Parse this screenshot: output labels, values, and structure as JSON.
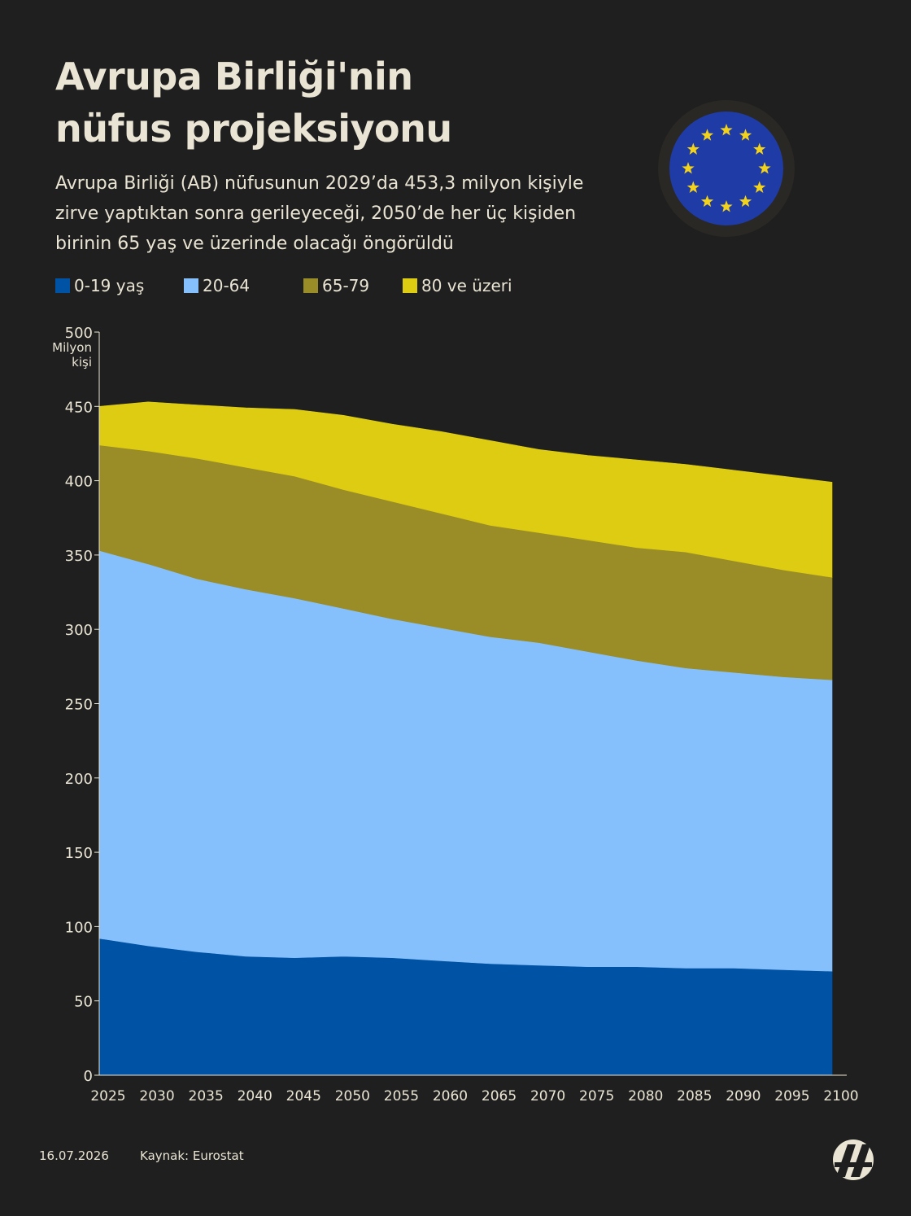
{
  "title_lines": [
    "Avrupa Birliği'nin",
    "nüfus projeksiyonu"
  ],
  "subtitle_lines": [
    "Avrupa Birliği (AB) nüfusunun 2029’da 453,3 milyon kişiyle",
    "zirve yaptıktan sonra gerileyeceği, 2050’de her üç kişiden",
    "birinin 65 yaş ve üzerinde olacağı öngörüldü"
  ],
  "footer": {
    "date": "16.07.2026",
    "source": "Kaynak: Eurostat"
  },
  "icons": {
    "flag": "eu-flag-icon",
    "logo": "aa-logo-icon"
  },
  "colors": {
    "background": "#1f1f1f",
    "text": "#e9e4d3",
    "flag_blue": "#1f3ba6",
    "flag_star": "#f2d21a"
  },
  "chart_data": {
    "type": "area",
    "stacked": true,
    "ylabel": "Milyon kişi",
    "ylabel_lines": [
      "Milyon",
      "kişi"
    ],
    "ylim": [
      0,
      500
    ],
    "yticks": [
      0,
      50,
      100,
      150,
      200,
      250,
      300,
      350,
      400,
      450,
      500
    ],
    "xlim": [
      2025,
      2100
    ],
    "xticks": [
      2025,
      2030,
      2035,
      2040,
      2045,
      2050,
      2055,
      2060,
      2065,
      2070,
      2075,
      2080,
      2085,
      2090,
      2095,
      2100
    ],
    "legend_position": "top-left",
    "x": [
      2025,
      2030,
      2035,
      2040,
      2045,
      2050,
      2055,
      2060,
      2065,
      2070,
      2075,
      2080,
      2085,
      2090,
      2095,
      2100
    ],
    "series": [
      {
        "name": "0-19 yaş",
        "color": "#0052a5",
        "values": [
          92,
          87,
          83,
          80,
          79,
          80,
          79,
          77,
          75,
          74,
          73,
          73,
          72,
          72,
          71,
          70
        ]
      },
      {
        "name": "20-64",
        "color": "#86c0fc",
        "values": [
          261,
          257,
          251,
          247,
          242,
          234,
          228,
          224,
          220,
          217,
          212,
          206,
          202,
          199,
          197,
          196
        ]
      },
      {
        "name": "65-79",
        "color": "#9a8c26",
        "values": [
          71,
          76,
          81,
          82,
          82,
          80,
          79,
          77,
          75,
          74,
          75,
          76,
          78,
          75,
          72,
          69
        ]
      },
      {
        "name": "80 ve üzeri",
        "color": "#ddcc12",
        "values": [
          26,
          33,
          36,
          40,
          45,
          50,
          52,
          55,
          57,
          56,
          57,
          59,
          59,
          61,
          63,
          64
        ]
      }
    ]
  }
}
